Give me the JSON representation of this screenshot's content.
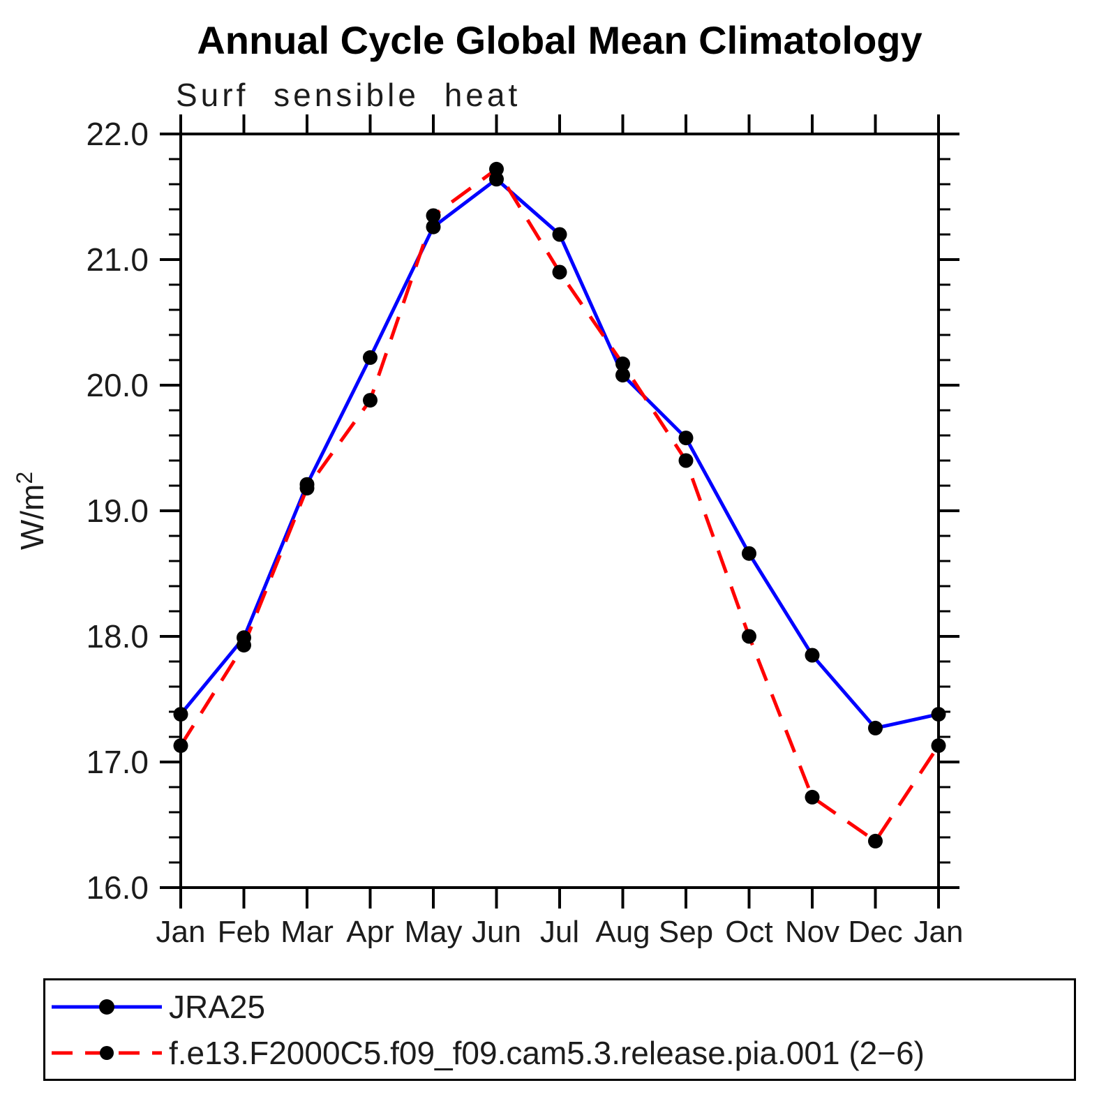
{
  "chart_data": {
    "type": "line",
    "title": "Annual Cycle Global Mean Climatology",
    "subtitle": "Surf sensible heat",
    "ylabel": "W/m²",
    "xlabel": "",
    "ylim": [
      16.0,
      22.0
    ],
    "ymajor_step": 1.0,
    "yminor_step": 0.2,
    "ytick_labels": [
      "16.0",
      "17.0",
      "18.0",
      "19.0",
      "20.0",
      "21.0",
      "22.0"
    ],
    "categories": [
      "Jan",
      "Feb",
      "Mar",
      "Apr",
      "May",
      "Jun",
      "Jul",
      "Aug",
      "Sep",
      "Oct",
      "Nov",
      "Dec",
      "Jan"
    ],
    "grid": false,
    "legend_position": "bottom-left-box",
    "series": [
      {
        "name": "JRA25",
        "line_style": "solid",
        "color": "#0000ff",
        "marker": "filled-circle",
        "marker_color": "#000000",
        "values": [
          17.38,
          17.99,
          19.21,
          20.22,
          21.26,
          21.64,
          21.2,
          20.08,
          19.58,
          18.66,
          17.85,
          17.27,
          17.38
        ]
      },
      {
        "name": "f.e13.F2000C5.f09_f09.cam5.3.release.pia.001 (2−6)",
        "line_style": "dashed",
        "color": "#ff0000",
        "marker": "filled-circle",
        "marker_color": "#000000",
        "values": [
          17.13,
          17.93,
          19.18,
          19.88,
          21.35,
          21.72,
          20.9,
          20.17,
          19.4,
          18.0,
          16.72,
          16.37,
          17.13
        ]
      }
    ],
    "axis_color": "#000000"
  }
}
